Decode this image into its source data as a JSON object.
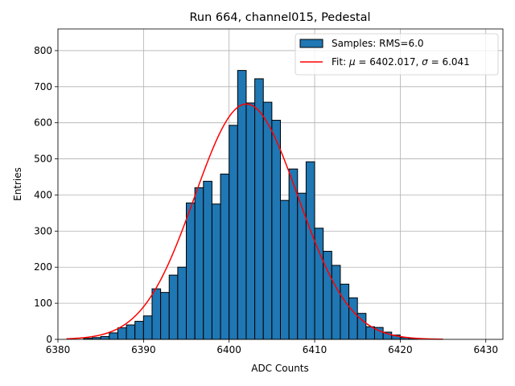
{
  "chart_data": {
    "type": "bar",
    "title": "Run 664, channel015, Pedestal",
    "xlabel": "ADC Counts",
    "ylabel": "Entries",
    "xlim": [
      6380,
      6432
    ],
    "ylim": [
      0,
      860
    ],
    "xticks": [
      6380,
      6390,
      6400,
      6410,
      6420,
      6430
    ],
    "yticks": [
      0,
      100,
      200,
      300,
      400,
      500,
      600,
      700,
      800
    ],
    "grid": true,
    "legend_position": "top-right",
    "colors": {
      "bars": "#1f77b4",
      "fit": "#ff0000"
    },
    "bin_width": 1,
    "bins": [
      6383,
      6384,
      6385,
      6386,
      6387,
      6388,
      6389,
      6390,
      6391,
      6392,
      6393,
      6394,
      6395,
      6396,
      6397,
      6398,
      6399,
      6400,
      6401,
      6402,
      6403,
      6404,
      6405,
      6406,
      6407,
      6408,
      6409,
      6410,
      6411,
      6412,
      6413,
      6414,
      6415,
      6416,
      6417,
      6418,
      6419,
      6420,
      6421
    ],
    "counts": [
      3,
      5,
      8,
      18,
      32,
      40,
      50,
      65,
      140,
      130,
      178,
      200,
      378,
      420,
      438,
      375,
      458,
      593,
      745,
      655,
      722,
      657,
      607,
      385,
      472,
      405,
      492,
      308,
      244,
      205,
      153,
      115,
      72,
      35,
      33,
      20,
      12,
      5,
      3
    ],
    "series": [
      {
        "name": "Samples: RMS=6.0",
        "kind": "histogram"
      },
      {
        "name": "Fit: μ = 6402.017, σ = 6.041",
        "kind": "gaussian-fit",
        "mu": 6402.017,
        "sigma": 6.041,
        "amplitude": 652,
        "x_range": [
          6381,
          6425
        ]
      }
    ],
    "legend": {
      "samples_label": "Samples: RMS=6.0",
      "fit_label_prefix": "Fit: ",
      "fit_mu_symbol": "μ",
      "fit_mu_value": " = 6402.017, ",
      "fit_sigma_symbol": "σ",
      "fit_sigma_value": " = 6.041"
    }
  }
}
